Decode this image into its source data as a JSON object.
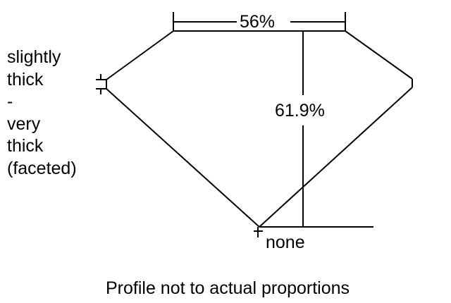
{
  "labels": {
    "table_percent": "56%",
    "depth_percent": "61.9%",
    "culet": "none",
    "girdle_lines": [
      "slightly",
      "thick",
      "-",
      "very",
      "thick",
      "(faceted)"
    ],
    "caption": "Profile not to actual proportions"
  },
  "colors": {
    "line": "#000000",
    "background": "#ffffff"
  }
}
